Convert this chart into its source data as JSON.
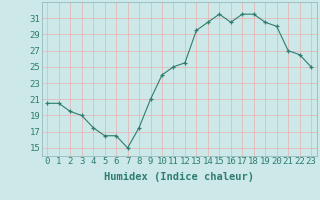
{
  "x": [
    0,
    1,
    2,
    3,
    4,
    5,
    6,
    7,
    8,
    9,
    10,
    11,
    12,
    13,
    14,
    15,
    16,
    17,
    18,
    19,
    20,
    21,
    22,
    23
  ],
  "y": [
    20.5,
    20.5,
    19.5,
    19.0,
    17.5,
    16.5,
    16.5,
    15.0,
    17.5,
    21.0,
    24.0,
    25.0,
    25.5,
    29.5,
    30.5,
    31.5,
    30.5,
    31.5,
    31.5,
    30.5,
    30.0,
    27.0,
    26.5,
    25.0
  ],
  "xlabel": "Humidex (Indice chaleur)",
  "ylim": [
    14,
    33
  ],
  "yticks": [
    15,
    17,
    19,
    21,
    23,
    25,
    27,
    29,
    31
  ],
  "xticks": [
    0,
    1,
    2,
    3,
    4,
    5,
    6,
    7,
    8,
    9,
    10,
    11,
    12,
    13,
    14,
    15,
    16,
    17,
    18,
    19,
    20,
    21,
    22,
    23
  ],
  "line_color": "#2e7d6e",
  "marker_color": "#2e7d6e",
  "bg_color": "#cde8e8",
  "grid_color": "#b0d4d4",
  "label_color": "#2e7d6e",
  "tick_label_fontsize": 6.5,
  "xlabel_fontsize": 7.5
}
